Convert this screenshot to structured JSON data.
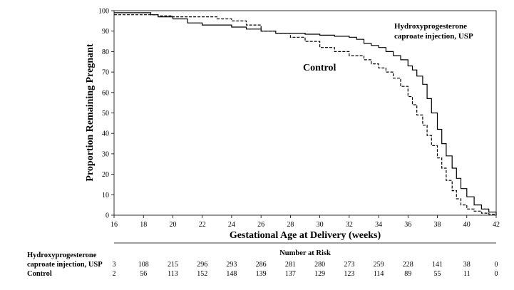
{
  "chart_data": {
    "type": "line",
    "title": "",
    "xlabel": "Gestational Age at Delivery (weeks)",
    "ylabel": "Proportion Remaining Pregnant",
    "xlim": [
      16,
      42
    ],
    "ylim": [
      0,
      100
    ],
    "x_ticks": [
      "16",
      "18",
      "20",
      "22",
      "24",
      "26",
      "28",
      "30",
      "32",
      "34",
      "36",
      "38",
      "40",
      "42"
    ],
    "y_ticks": [
      "0",
      "10",
      "20",
      "30",
      "40",
      "50",
      "60",
      "70",
      "80",
      "90",
      "100"
    ],
    "grid": false,
    "series": [
      {
        "name": "Hydroxyprogesterone caproate injection, USP",
        "style": "solid",
        "color": "#000000",
        "x": [
          16,
          18,
          18.5,
          19,
          20,
          21,
          22,
          23,
          24,
          25,
          26,
          27,
          28,
          29,
          30,
          31,
          32,
          32.5,
          33,
          33.5,
          34,
          34.5,
          35,
          35.5,
          36,
          36.3,
          36.6,
          37,
          37.3,
          37.6,
          38,
          38.3,
          38.6,
          39,
          39.3,
          39.6,
          40,
          40.5,
          41,
          41.5,
          42
        ],
        "y": [
          99,
          99,
          98,
          97,
          96,
          94,
          93,
          93,
          92,
          91,
          90,
          89,
          89,
          88.5,
          88,
          87.5,
          87,
          86,
          84,
          83,
          82,
          80,
          78,
          76,
          73,
          71,
          68,
          64,
          57,
          50,
          42,
          35,
          29,
          23,
          18,
          13,
          9,
          5,
          3,
          1.5,
          0
        ]
      },
      {
        "name": "Control",
        "style": "dashed",
        "color": "#000000",
        "x": [
          16,
          18,
          19,
          20,
          22,
          23,
          24,
          25,
          26,
          27,
          28,
          29,
          30,
          31,
          32,
          33,
          33.5,
          34,
          34.5,
          35,
          35.5,
          36,
          36.3,
          36.6,
          37,
          37.3,
          37.6,
          38,
          38.3,
          38.6,
          39,
          39.3,
          39.6,
          40,
          40.5,
          41,
          41.5,
          42
        ],
        "y": [
          98,
          98,
          97.5,
          97,
          97,
          96,
          95,
          93,
          90,
          89,
          87,
          85,
          82,
          80,
          78,
          76,
          74,
          72,
          70,
          67,
          63,
          58,
          54,
          49,
          44,
          39,
          34,
          28,
          23,
          17,
          12,
          8,
          5,
          3,
          2,
          1,
          0.5,
          0
        ]
      }
    ],
    "annotations": {
      "series_label_1": "Hydroxyprogesterone",
      "series_label_2": "caproate injection, USP",
      "control_label": "Control"
    },
    "risk_table": {
      "heading": "Number at Risk",
      "rows": [
        {
          "label_line1": "Hydroxyprogesterone",
          "label_line2": "caproate injection, USP",
          "values": [
            "3",
            "108",
            "215",
            "296",
            "293",
            "286",
            "281",
            "280",
            "273",
            "259",
            "228",
            "141",
            "38",
            "0"
          ]
        },
        {
          "label_line1": "Control",
          "label_line2": "",
          "values": [
            "2",
            "56",
            "113",
            "152",
            "148",
            "139",
            "137",
            "129",
            "123",
            "114",
            "89",
            "55",
            "11",
            "0"
          ]
        }
      ]
    }
  }
}
